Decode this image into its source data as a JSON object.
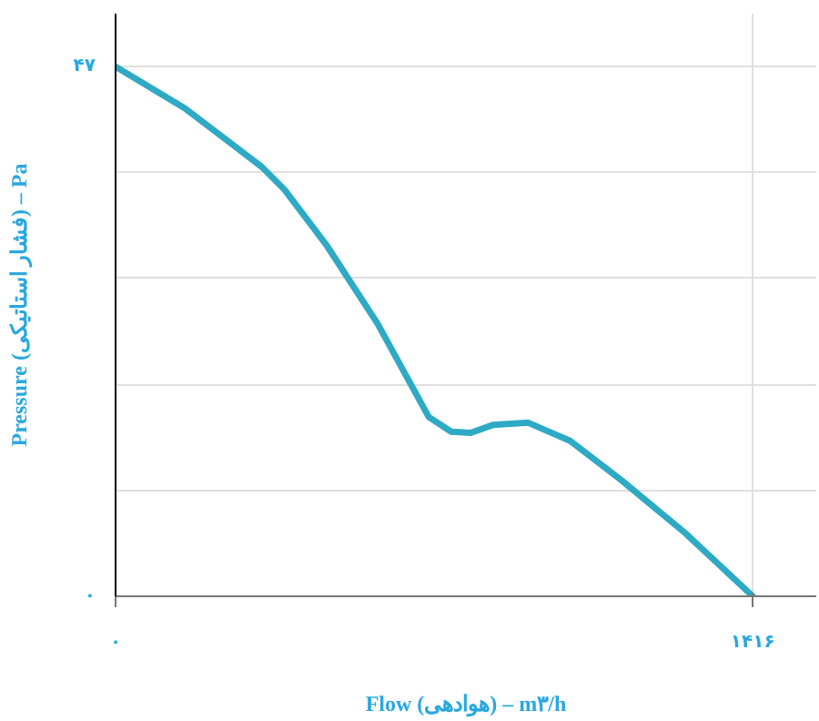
{
  "chart_data": {
    "type": "line",
    "xlabel": "Flow (هوادهی) – m۳/h",
    "ylabel": "Pressure (فشار استاتیکی) – Pa",
    "x": [
      0,
      154,
      325,
      375,
      468,
      582,
      696,
      746,
      789,
      838,
      917,
      1010,
      1124,
      1266,
      1416
    ],
    "series": [
      {
        "color": "#2eaac5",
        "values": [
          47,
          43.3,
          38.1,
          36.1,
          31.2,
          24.2,
          15.9,
          14.6,
          14.5,
          15.2,
          15.4,
          13.8,
          10.3,
          5.6,
          0
        ]
      }
    ],
    "xlim": [
      0,
      1557
    ],
    "ylim": [
      0,
      51.7
    ],
    "xticks": [
      {
        "value": 0,
        "label": "۰"
      },
      {
        "value": 1416,
        "label": "۱۴۱۶"
      }
    ],
    "yticks": [
      {
        "value": 0,
        "label": "۰"
      },
      {
        "value": 9.4,
        "label": null
      },
      {
        "value": 18.8,
        "label": null
      },
      {
        "value": 28.2,
        "label": null
      },
      {
        "value": 37.6,
        "label": null
      },
      {
        "value": 47,
        "label": "۴۷"
      }
    ],
    "grid": true,
    "marker": "none",
    "line_style": "solid"
  }
}
